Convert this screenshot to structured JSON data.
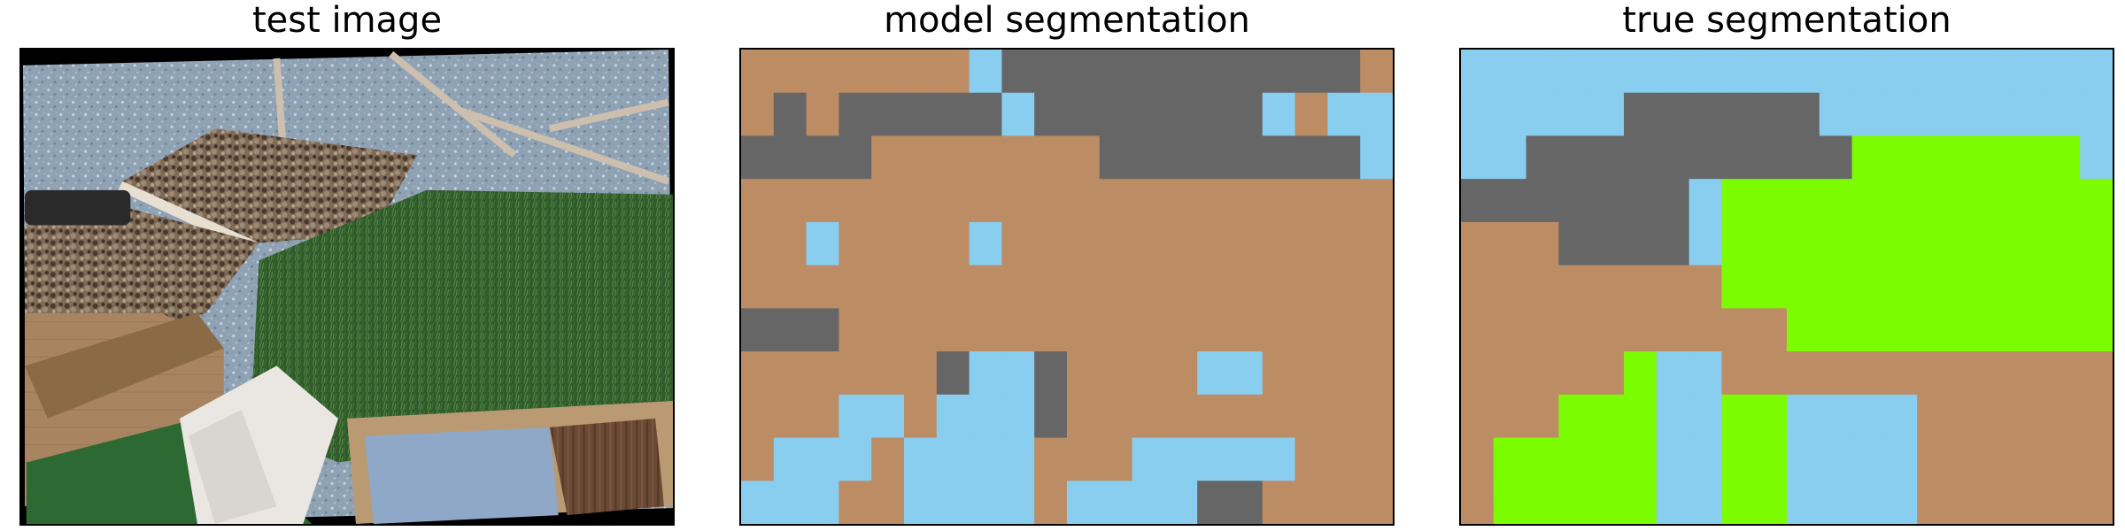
{
  "figure": {
    "panels": [
      {
        "title": "test image"
      },
      {
        "title": "model segmentation"
      },
      {
        "title": "true segmentation"
      }
    ]
  },
  "colors": {
    "floor": "#bc8c64",
    "water": "#89cdef",
    "road": "#666666",
    "grass": "#7cfc00"
  },
  "segmentation": {
    "cols": 20,
    "rows": 11,
    "model": [
      "FFFFFFFWRRRRRRRRRRRF",
      "FRFRRRRRWRRRRRRRWFWW",
      "RRRRFFFFFFFRRRRRRRRW",
      "FFFFFFFFFFFFFFFFFFFF",
      "FFWFFFFWFFFFFFFFFFFF",
      "FFFFFFFFFFFFFFFFFFFF",
      "RRRFFFFFFFFFFFFFFFFF",
      "FFFFFFRWWRFFFFWWFFFF",
      "FFFWWFWWWRFFFFFFFFFF",
      "FWWWFWWWWFFFWWWWWFFF",
      "WWWFFWWWWFWWWWRRFFFF"
    ],
    "truth": [
      "WWWWWWWWWWWWWWWWWWWW",
      "WWWWWRRRRRRWWWWWWWWW",
      "WWRRRRRRRRRRGGGGGGGW",
      "RRRRRRRWGGGGGGGGGGGG",
      "FFFRRRRWGGGGGGGGGGGG",
      "FFFFFFFFGGGGGGGGGGGG",
      "FFFFFFFFFFGGGGGGGGGG",
      "FFFFFGWWFFFFFFFFFFFF",
      "FFFGGGWWGGWWWWFFFFFF",
      "FGGGGGWWGGWWWWFFFFFF",
      "FGGGGGWWGGWWWWFFFFFF"
    ]
  }
}
